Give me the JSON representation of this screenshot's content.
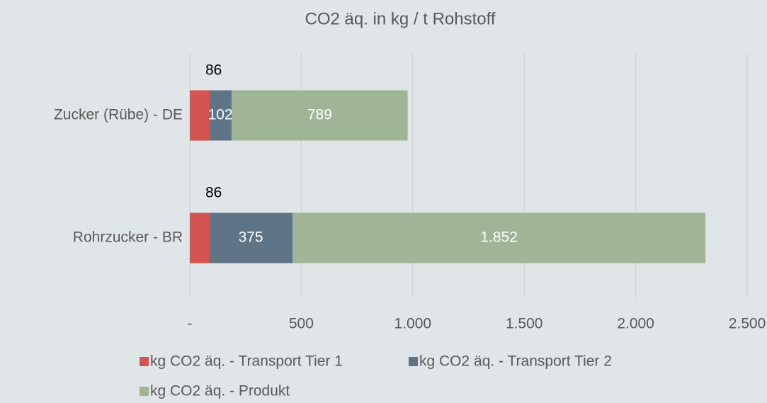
{
  "chart_data": {
    "type": "stacked_barh",
    "title": "CO2 äq. in kg / t Rohstoff",
    "categories": [
      "Zucker (Rübe) - DE",
      "Rohrzucker - BR"
    ],
    "series": [
      {
        "name": "kg CO2 äq. - Transport Tier 1",
        "color": "#d55452",
        "values": [
          86,
          86
        ]
      },
      {
        "name": "kg CO2 äq. - Transport Tier 2",
        "color": "#5f7586",
        "values": [
          102,
          375
        ]
      },
      {
        "name": "kg CO2 äq. - Produkt",
        "color": "#9fb596",
        "values": [
          789,
          1852
        ],
        "value_labels": [
          "789",
          "1.852"
        ]
      }
    ],
    "xlim": [
      0,
      2500
    ],
    "xticks": [
      {
        "value": 0,
        "label": "-"
      },
      500,
      {
        "value": 1000,
        "label": "1.000"
      },
      {
        "value": 1500,
        "label": "1.500"
      },
      {
        "value": 2000,
        "label": "2.000"
      },
      {
        "value": 2500,
        "label": "2.500"
      }
    ],
    "grid": true,
    "legend": "bottom"
  }
}
